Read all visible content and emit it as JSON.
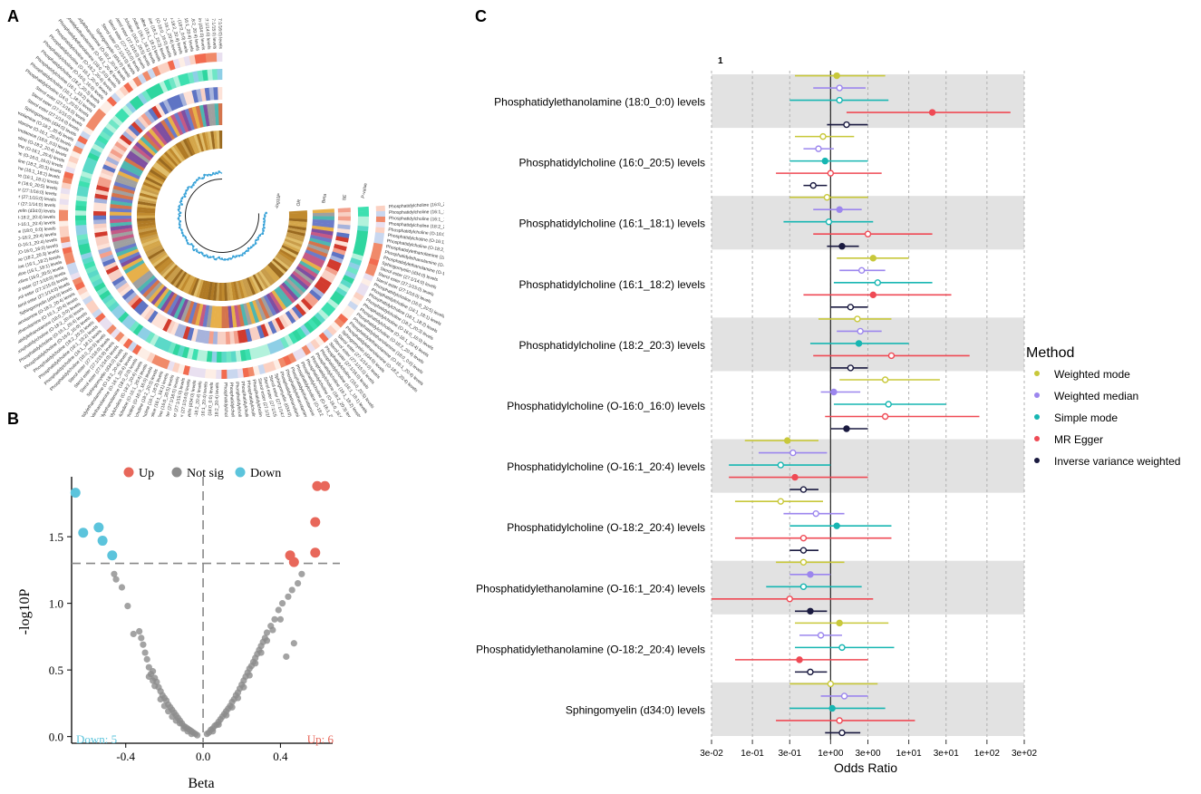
{
  "panels": {
    "a": "A",
    "b": "B",
    "c": "C"
  },
  "circos": {
    "labels_outer": [
      "Phosphatidylcholine (16:0_20:5) levels",
      "Phosphatidylcholine (16:1_18:1) levels",
      "Phosphatidylcholine (16:1_18:2) levels",
      "Phosphatidylcholine (18:2_20:3) levels",
      "Phosphatidylcholine (O-16:0_16:0) levels",
      "Phosphatidylcholine (O-16:1_20:4) levels",
      "Phosphatidylcholine (O-18:2_20:4) levels",
      "Phosphatidylethanolamine (18:0_0:0) levels",
      "Phosphatidylethanolamine (O-16:1_20:4) levels",
      "Phosphatidylethanolamine (O-18:2_20:4) levels",
      "Sphingomyelin (d34:0) levels",
      "Sterol ester (27:1/14:0) levels",
      "Sterol ester (27:1/15:0) levels",
      "Sterol ester (27:1/16:0) levels"
    ],
    "ring_labels": [
      "-log10P",
      "OR",
      "Beta",
      "SE",
      "P-value"
    ]
  },
  "volcano": {
    "chart_data": {
      "type": "scatter",
      "xlabel": "Beta",
      "ylabel": "-log10P",
      "xlim": [
        -0.68,
        0.67
      ],
      "ylim": [
        -0.05,
        1.95
      ],
      "xticks": [
        -0.4,
        0.0,
        0.4
      ],
      "xtick_labels": [
        "-0.4",
        "0.0",
        "0.4"
      ],
      "yticks": [
        0.0,
        0.5,
        1.0,
        1.5
      ],
      "ytick_labels": [
        "0.0",
        "0.5",
        "1.0",
        "1.5"
      ],
      "threshold_y": 1.3,
      "threshold_x": 0.0,
      "legend": [
        {
          "name": "Up",
          "color": "#e8675a"
        },
        {
          "name": "Not sig",
          "color": "#8c8c8c"
        },
        {
          "name": "Down",
          "color": "#5cc4dc"
        }
      ],
      "counts": {
        "down": "Down: 5",
        "up": "Up: 6"
      },
      "series": [
        {
          "name": "Up",
          "color": "#e8675a",
          "points": [
            [
              0.59,
              1.88
            ],
            [
              0.63,
              1.88
            ],
            [
              0.58,
              1.61
            ],
            [
              0.58,
              1.38
            ],
            [
              0.45,
              1.36
            ],
            [
              0.47,
              1.31
            ]
          ]
        },
        {
          "name": "Down",
          "color": "#5cc4dc",
          "points": [
            [
              -0.66,
              1.83
            ],
            [
              -0.54,
              1.57
            ],
            [
              -0.62,
              1.53
            ],
            [
              -0.52,
              1.47
            ],
            [
              -0.47,
              1.36
            ]
          ]
        },
        {
          "name": "Not sig",
          "color": "#8c8c8c",
          "points": [
            [
              -0.46,
              1.22
            ],
            [
              -0.45,
              1.18
            ],
            [
              -0.42,
              1.12
            ],
            [
              -0.39,
              0.98
            ],
            [
              -0.36,
              0.77
            ],
            [
              -0.33,
              0.79
            ],
            [
              -0.32,
              0.74
            ],
            [
              -0.31,
              0.69
            ],
            [
              -0.3,
              0.63
            ],
            [
              -0.29,
              0.58
            ],
            [
              -0.28,
              0.52
            ],
            [
              -0.27,
              0.47
            ],
            [
              -0.26,
              0.49
            ],
            [
              -0.25,
              0.44
            ],
            [
              -0.24,
              0.41
            ],
            [
              -0.23,
              0.37
            ],
            [
              -0.22,
              0.34
            ],
            [
              -0.21,
              0.31
            ],
            [
              -0.2,
              0.29
            ],
            [
              -0.19,
              0.27
            ],
            [
              -0.18,
              0.24
            ],
            [
              -0.17,
              0.22
            ],
            [
              -0.16,
              0.2
            ],
            [
              -0.15,
              0.18
            ],
            [
              -0.14,
              0.16
            ],
            [
              -0.13,
              0.14
            ],
            [
              -0.12,
              0.12
            ],
            [
              -0.11,
              0.1
            ],
            [
              -0.1,
              0.08
            ],
            [
              -0.09,
              0.07
            ],
            [
              -0.08,
              0.06
            ],
            [
              -0.07,
              0.05
            ],
            [
              -0.06,
              0.04
            ],
            [
              -0.05,
              0.03
            ],
            [
              -0.04,
              0.02
            ],
            [
              -0.03,
              0.01
            ],
            [
              -0.25,
              0.38
            ],
            [
              -0.22,
              0.28
            ],
            [
              -0.2,
              0.23
            ],
            [
              -0.18,
              0.19
            ],
            [
              -0.16,
              0.15
            ],
            [
              -0.14,
              0.12
            ],
            [
              -0.12,
              0.1
            ],
            [
              -0.1,
              0.06
            ],
            [
              -0.08,
              0.04
            ],
            [
              -0.06,
              0.02
            ],
            [
              -0.28,
              0.45
            ],
            [
              -0.26,
              0.42
            ],
            [
              0.02,
              0.02
            ],
            [
              0.03,
              0.03
            ],
            [
              0.04,
              0.05
            ],
            [
              0.05,
              0.06
            ],
            [
              0.06,
              0.08
            ],
            [
              0.07,
              0.09
            ],
            [
              0.08,
              0.11
            ],
            [
              0.09,
              0.13
            ],
            [
              0.1,
              0.15
            ],
            [
              0.11,
              0.17
            ],
            [
              0.12,
              0.19
            ],
            [
              0.13,
              0.21
            ],
            [
              0.14,
              0.23
            ],
            [
              0.15,
              0.26
            ],
            [
              0.16,
              0.28
            ],
            [
              0.17,
              0.31
            ],
            [
              0.18,
              0.33
            ],
            [
              0.19,
              0.36
            ],
            [
              0.2,
              0.39
            ],
            [
              0.21,
              0.42
            ],
            [
              0.22,
              0.45
            ],
            [
              0.23,
              0.48
            ],
            [
              0.24,
              0.51
            ],
            [
              0.25,
              0.53
            ],
            [
              0.26,
              0.56
            ],
            [
              0.27,
              0.59
            ],
            [
              0.28,
              0.62
            ],
            [
              0.29,
              0.65
            ],
            [
              0.3,
              0.68
            ],
            [
              0.31,
              0.71
            ],
            [
              0.32,
              0.74
            ],
            [
              0.33,
              0.78
            ],
            [
              0.35,
              0.83
            ],
            [
              0.37,
              0.88
            ],
            [
              0.39,
              0.95
            ],
            [
              0.41,
              1.0
            ],
            [
              0.44,
              1.05
            ],
            [
              0.46,
              1.1
            ],
            [
              0.49,
              1.15
            ],
            [
              0.51,
              1.22
            ],
            [
              0.12,
              0.16
            ],
            [
              0.15,
              0.22
            ],
            [
              0.18,
              0.29
            ],
            [
              0.21,
              0.37
            ],
            [
              0.24,
              0.46
            ],
            [
              0.27,
              0.55
            ],
            [
              0.3,
              0.63
            ],
            [
              0.33,
              0.72
            ],
            [
              0.36,
              0.8
            ],
            [
              0.4,
              0.88
            ],
            [
              0.43,
              0.6
            ],
            [
              0.47,
              0.7
            ],
            [
              0.05,
              0.04
            ],
            [
              0.08,
              0.09
            ]
          ]
        }
      ]
    }
  },
  "forest": {
    "chart_data": {
      "type": "forest",
      "xlabel": "Odds Ratio",
      "scale": "log10",
      "xlim": [
        0.03,
        300
      ],
      "xticks": [
        0.03,
        0.1,
        0.3,
        1,
        3,
        10,
        30,
        100,
        300
      ],
      "xtick_labels": [
        "3e-02",
        "1e-01",
        "3e-01",
        "1e+00",
        "3e+00",
        "1e+01",
        "3e+01",
        "1e+02",
        "3e+02"
      ],
      "ref_line": 1,
      "corner_label": "1",
      "legend_title": "Method",
      "methods": [
        {
          "name": "Weighted mode",
          "color": "#c8c83a"
        },
        {
          "name": "Weighted median",
          "color": "#9c86ee"
        },
        {
          "name": "Simple mode",
          "color": "#17b6b2"
        },
        {
          "name": "MR Egger",
          "color": "#ef4a55"
        },
        {
          "name": "Inverse variance weighted",
          "color": "#1a1a40"
        }
      ],
      "exposures": [
        {
          "label": "Phosphatidylethanolamine (18:0_0:0) levels",
          "shaded": true,
          "estimates": [
            [
              1.2,
              0.35,
              5.0
            ],
            [
              1.3,
              0.6,
              2.8
            ],
            [
              1.3,
              0.3,
              5.5
            ],
            [
              20,
              1.6,
              200
            ],
            [
              1.6,
              0.9,
              3.0
            ]
          ]
        },
        {
          "label": "Phosphatidylcholine (16:0_20:5) levels",
          "shaded": false,
          "estimates": [
            [
              0.8,
              0.35,
              2.0
            ],
            [
              0.7,
              0.45,
              1.1
            ],
            [
              0.85,
              0.3,
              3.0
            ],
            [
              1.0,
              0.2,
              4.5
            ],
            [
              0.6,
              0.45,
              0.9
            ]
          ]
        },
        {
          "label": "Phosphatidylcholine (16:1_18:1) levels",
          "shaded": true,
          "estimates": [
            [
              0.9,
              0.3,
              3.0
            ],
            [
              1.3,
              0.6,
              2.5
            ],
            [
              0.95,
              0.25,
              3.5
            ],
            [
              3.0,
              0.6,
              20
            ],
            [
              1.4,
              0.9,
              2.3
            ]
          ]
        },
        {
          "label": "Phosphatidylcholine (16:1_18:2) levels",
          "shaded": false,
          "estimates": [
            [
              3.5,
              1.2,
              10
            ],
            [
              2.5,
              1.3,
              5.0
            ],
            [
              4.0,
              1.1,
              20
            ],
            [
              3.5,
              0.45,
              35
            ],
            [
              1.8,
              1.0,
              3.0
            ]
          ]
        },
        {
          "label": "Phosphatidylcholine (18:2_20:3) levels",
          "shaded": true,
          "estimates": [
            [
              2.2,
              0.7,
              6.0
            ],
            [
              2.4,
              1.2,
              4.5
            ],
            [
              2.3,
              0.55,
              10
            ],
            [
              6.0,
              0.6,
              60
            ],
            [
              1.8,
              1.0,
              3.0
            ]
          ]
        },
        {
          "label": "Phosphatidylcholine (O-16:0_16:0) levels",
          "shaded": false,
          "estimates": [
            [
              5.0,
              1.3,
              25
            ],
            [
              1.1,
              0.75,
              2.4
            ],
            [
              5.5,
              1.1,
              30
            ],
            [
              5.0,
              0.85,
              80
            ],
            [
              1.6,
              1.0,
              3.0
            ]
          ]
        },
        {
          "label": "Phosphatidylcholine (O-16:1_20:4) levels",
          "shaded": true,
          "estimates": [
            [
              0.28,
              0.08,
              0.7
            ],
            [
              0.33,
              0.12,
              0.9
            ],
            [
              0.23,
              0.05,
              1.0
            ],
            [
              0.35,
              0.05,
              3.0
            ],
            [
              0.45,
              0.3,
              0.7
            ]
          ]
        },
        {
          "label": "Phosphatidylcholine (O-18:2_20:4) levels",
          "shaded": false,
          "estimates": [
            [
              0.23,
              0.06,
              0.8
            ],
            [
              0.65,
              0.25,
              1.5
            ],
            [
              1.2,
              0.3,
              6.0
            ],
            [
              0.45,
              0.06,
              6.0
            ],
            [
              0.45,
              0.3,
              0.7
            ]
          ]
        },
        {
          "label": "Phosphatidylethanolamine (O-16:1_20:4) levels",
          "shaded": true,
          "estimates": [
            [
              0.45,
              0.2,
              1.5
            ],
            [
              0.55,
              0.3,
              1.0
            ],
            [
              0.45,
              0.15,
              2.5
            ],
            [
              0.3,
              0.03,
              3.5
            ],
            [
              0.55,
              0.35,
              0.9
            ]
          ]
        },
        {
          "label": "Phosphatidylethanolamine (O-18:2_20:4) levels",
          "shaded": false,
          "estimates": [
            [
              1.3,
              0.35,
              5.5
            ],
            [
              0.75,
              0.4,
              1.4
            ],
            [
              1.4,
              0.35,
              6.5
            ],
            [
              0.4,
              0.06,
              3.0
            ],
            [
              0.55,
              0.35,
              0.9
            ]
          ]
        },
        {
          "label": "Sphingomyelin (d34:0) levels",
          "shaded": true,
          "estimates": [
            [
              1.0,
              0.3,
              4.0
            ],
            [
              1.5,
              0.75,
              3.0
            ],
            [
              1.05,
              0.3,
              5.0
            ],
            [
              1.3,
              0.2,
              12
            ],
            [
              1.4,
              0.85,
              2.4
            ]
          ]
        }
      ]
    }
  }
}
